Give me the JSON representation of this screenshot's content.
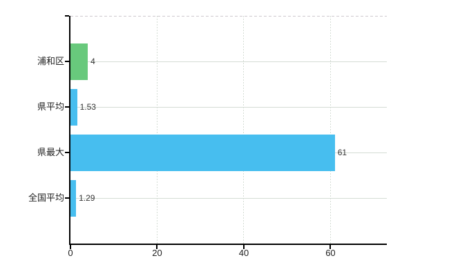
{
  "chart": {
    "background": "#ffffff",
    "axis_color": "#000000",
    "hgrid_color": "#d4dcd4",
    "vgrid_color": "#d4dcd4",
    "top_border_color": "#cfc8cf",
    "category_text_color": "#222222",
    "value_text_color": "#333333"
  },
  "chart_data": {
    "type": "bar",
    "orientation": "horizontal",
    "title": "",
    "xlabel": "",
    "ylabel": "",
    "categories": [
      "浦和区",
      "県平均",
      "県最大",
      "全国平均"
    ],
    "values": [
      4,
      1.53,
      61,
      1.29
    ],
    "value_labels": [
      "4",
      "1.53",
      "61",
      "1.29"
    ],
    "bar_colors": [
      "#68c97c",
      "#47beef",
      "#47beef",
      "#47beef"
    ],
    "xlim": [
      0,
      73
    ],
    "x_ticks": [
      0,
      20,
      40,
      60
    ],
    "x_tick_labels": [
      "0",
      "20",
      "40",
      "60"
    ],
    "grid": true,
    "legend": false
  }
}
